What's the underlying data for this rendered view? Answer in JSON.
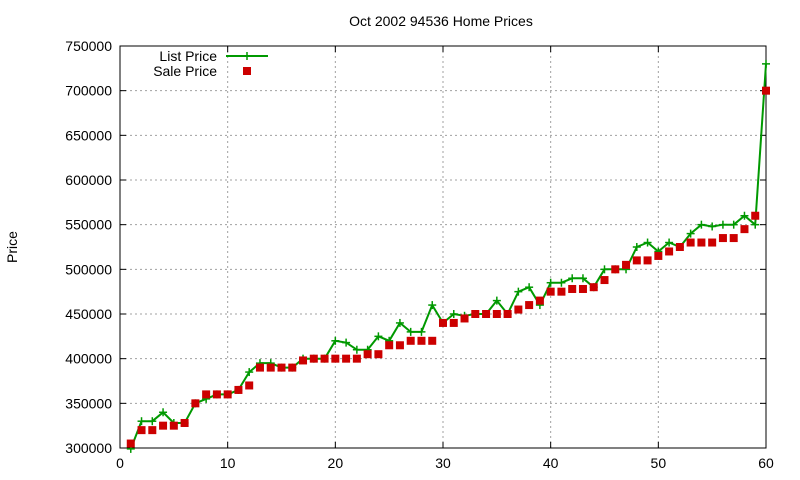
{
  "chart_data": {
    "type": "line",
    "title": "Oct 2002 94536 Home Prices",
    "xlabel": "",
    "ylabel": "Price",
    "xlim": [
      0,
      60
    ],
    "ylim": [
      300000,
      750000
    ],
    "xticks": [
      0,
      10,
      20,
      30,
      40,
      50,
      60
    ],
    "yticks": [
      300000,
      350000,
      400000,
      450000,
      500000,
      550000,
      600000,
      650000,
      700000,
      750000
    ],
    "grid": true,
    "legend": "top-left",
    "series": [
      {
        "name": "List Price",
        "style": "line+cross",
        "color": "#009900",
        "x": [
          1,
          2,
          3,
          4,
          5,
          6,
          7,
          8,
          9,
          10,
          11,
          12,
          13,
          14,
          15,
          16,
          17,
          18,
          19,
          20,
          21,
          22,
          23,
          24,
          25,
          26,
          27,
          28,
          29,
          30,
          31,
          32,
          33,
          34,
          35,
          36,
          37,
          38,
          39,
          40,
          41,
          42,
          43,
          44,
          45,
          46,
          47,
          48,
          49,
          50,
          51,
          52,
          53,
          54,
          55,
          56,
          57,
          58,
          59,
          60
        ],
        "values": [
          299000,
          330000,
          330000,
          340000,
          328000,
          328000,
          350000,
          355000,
          360000,
          360000,
          365000,
          385000,
          395000,
          395000,
          390000,
          390000,
          400000,
          400000,
          400000,
          420000,
          418000,
          410000,
          410000,
          425000,
          420000,
          440000,
          430000,
          430000,
          460000,
          440000,
          450000,
          448000,
          450000,
          450000,
          465000,
          450000,
          475000,
          480000,
          460000,
          485000,
          485000,
          490000,
          490000,
          480000,
          500000,
          500000,
          500000,
          525000,
          530000,
          520000,
          530000,
          525000,
          540000,
          550000,
          548000,
          550000,
          550000,
          560000,
          550000,
          730000
        ]
      },
      {
        "name": "Sale Price",
        "style": "square",
        "color": "#cc0000",
        "x": [
          1,
          2,
          3,
          4,
          5,
          6,
          7,
          8,
          9,
          10,
          11,
          12,
          13,
          14,
          15,
          16,
          17,
          18,
          19,
          20,
          21,
          22,
          23,
          24,
          25,
          26,
          27,
          28,
          29,
          30,
          31,
          32,
          33,
          34,
          35,
          36,
          37,
          38,
          39,
          40,
          41,
          42,
          43,
          44,
          45,
          46,
          47,
          48,
          49,
          50,
          51,
          52,
          53,
          54,
          55,
          56,
          57,
          58,
          59,
          60
        ],
        "values": [
          305000,
          320000,
          320000,
          325000,
          325000,
          328000,
          350000,
          360000,
          360000,
          360000,
          365000,
          370000,
          390000,
          390000,
          390000,
          390000,
          398000,
          400000,
          400000,
          400000,
          400000,
          400000,
          405000,
          405000,
          415000,
          415000,
          420000,
          420000,
          420000,
          440000,
          440000,
          445000,
          450000,
          450000,
          450000,
          450000,
          455000,
          460000,
          465000,
          475000,
          475000,
          478000,
          478000,
          480000,
          488000,
          500000,
          505000,
          510000,
          510000,
          515000,
          520000,
          525000,
          530000,
          530000,
          530000,
          535000,
          535000,
          545000,
          560000,
          700000
        ]
      }
    ]
  }
}
